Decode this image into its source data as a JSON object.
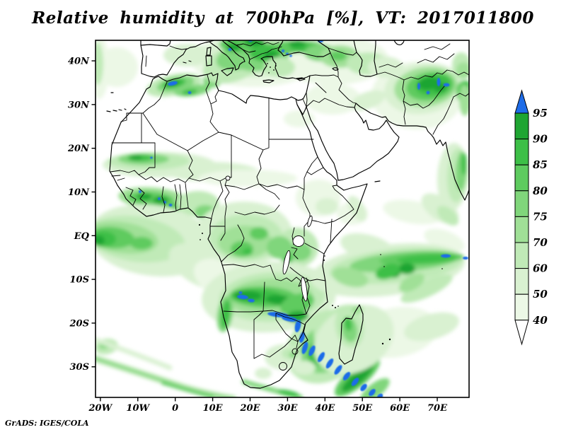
{
  "title": "Relative humidity at 700hPa [%], VT: 2017011800",
  "attribution": "GrADS: IGES/COLA",
  "chart_data": {
    "type": "heatmap",
    "title": "Relative humidity at 700hPa [%], VT: 2017011800",
    "variable": "Relative humidity",
    "pressure_level": "700hPa",
    "units": "%",
    "valid_time": "2017011800",
    "projection": "lat-lon",
    "lon_range": [
      -21.3,
      78.5
    ],
    "lat_range": [
      -37,
      44.7
    ],
    "grid": false,
    "x_axis": {
      "ticks": [
        {
          "label": "20W",
          "value": -20
        },
        {
          "label": "10W",
          "value": -10
        },
        {
          "label": "0",
          "value": 0
        },
        {
          "label": "10E",
          "value": 10
        },
        {
          "label": "20E",
          "value": 20
        },
        {
          "label": "30E",
          "value": 30
        },
        {
          "label": "40E",
          "value": 40
        },
        {
          "label": "50E",
          "value": 50
        },
        {
          "label": "60E",
          "value": 60
        },
        {
          "label": "70E",
          "value": 70
        }
      ]
    },
    "y_axis": {
      "ticks": [
        {
          "label": "40N",
          "value": 40
        },
        {
          "label": "30N",
          "value": 30
        },
        {
          "label": "20N",
          "value": 20
        },
        {
          "label": "10N",
          "value": 10
        },
        {
          "label": "EQ",
          "value": 0
        },
        {
          "label": "10S",
          "value": -10
        },
        {
          "label": "20S",
          "value": -20
        },
        {
          "label": "30S",
          "value": -30
        }
      ]
    },
    "colorbar": {
      "position": "right",
      "levels": [
        40,
        50,
        60,
        70,
        75,
        80,
        85,
        90,
        95
      ],
      "tick_labels_top_to_bottom": [
        "95",
        "90",
        "85",
        "80",
        "75",
        "70",
        "60",
        "50",
        "40"
      ],
      "segment_colors_top_to_bottom": [
        "#1fa532",
        "#3dbf47",
        "#5ecb5f",
        "#80d67b",
        "#a0e097",
        "#c0eab7",
        "#d9f1d1",
        "#ecf8e6"
      ],
      "over_color": "#1e6ce8",
      "under_color": "#ffffff"
    },
    "high_humidity_regions": [
      "Alboran Sea / northern Morocco (>95%) and Atlas–Tunisia band (80-95%)",
      "Balkans, Aegean, northern Turkey and Caucasus (80-95%, local >95%)",
      "Afghanistan / Hindu Kush (85-95%, specks >95%)",
      "West Indian coast band (75-90%)",
      "Mali / Sahel band and Guinea coast (80-95%, specks >95%)",
      "Equatorial Atlantic ITCZ band (75-95%)",
      "Congo basin and East African lakes (70-90%)",
      "Angola-Zambia-Zimbabwe band with Zambezi valley streaks (>95%)",
      "Mozambique front sweeping southeast to 37S (85%->95%)",
      "South Indian Ocean band near 8-12S, 40-78E (80-95%, specks >95%)"
    ],
    "map_overlay": "Continental coastlines and country borders: Africa, southern Europe, Middle East, Madagascar"
  }
}
